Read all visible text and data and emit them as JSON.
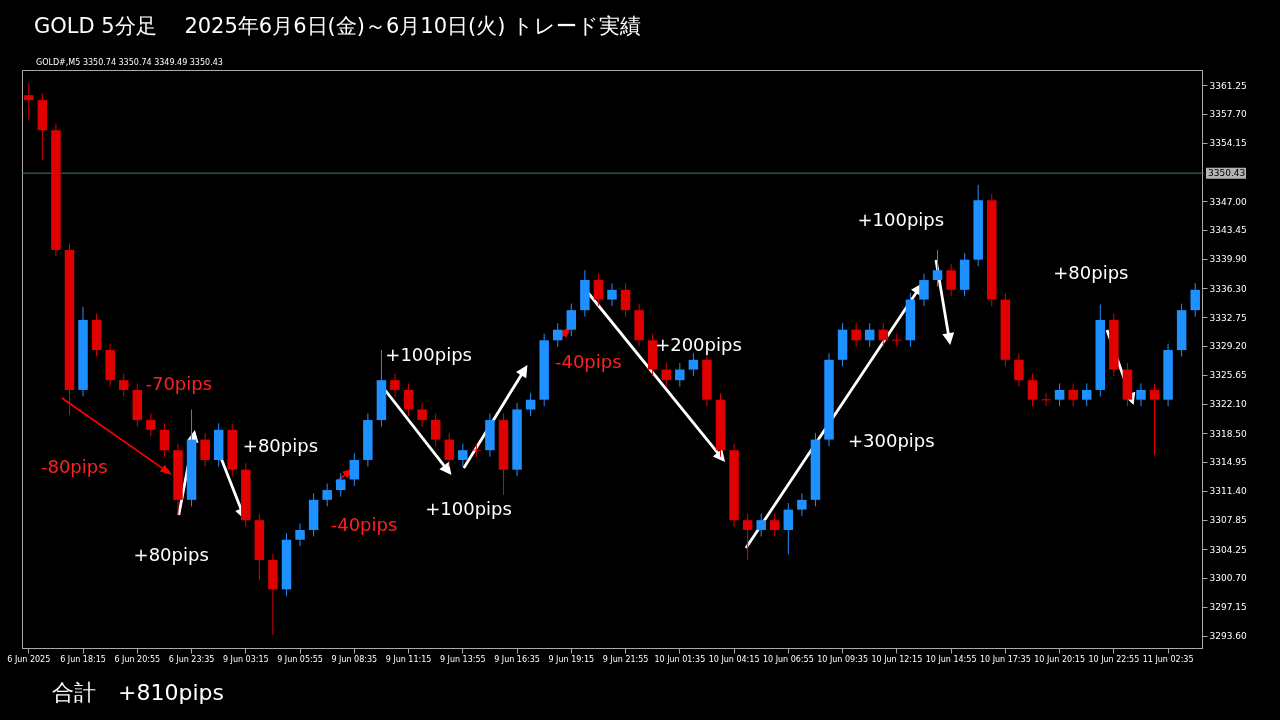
{
  "chart_data": {
    "type": "candlestick",
    "title": "GOLD  5分足　 2025年6月6日(金)～6月10日(火) トレード実績",
    "categories": [
      "6 Jun 2025",
      null,
      null,
      null,
      "6 Jun 18:15",
      null,
      null,
      null,
      "6 Jun 20:55",
      null,
      null,
      null,
      "6 Jun 23:35",
      null,
      null,
      null,
      "9 Jun 03:15",
      null,
      null,
      null,
      "9 Jun 05:55",
      null,
      null,
      null,
      "9 Jun 08:35",
      null,
      null,
      null,
      "9 Jun 11:15",
      null,
      null,
      null,
      "9 Jun 13:55",
      null,
      null,
      null,
      "9 Jun 16:35",
      null,
      null,
      null,
      "9 Jun 19:15",
      null,
      null,
      null,
      "9 Jun 21:55",
      null,
      null,
      null,
      "10 Jun 01:35",
      null,
      null,
      null,
      "10 Jun 04:15",
      null,
      null,
      null,
      "10 Jun 06:55",
      null,
      null,
      null,
      "10 Jun 09:35",
      null,
      null,
      null,
      "10 Jun 12:15",
      null,
      null,
      null,
      "10 Jun 14:55",
      null,
      null,
      null,
      "10 Jun 17:35",
      null,
      null,
      null,
      "10 Jun 20:15",
      null,
      null,
      null,
      "10 Jun 22:55",
      null,
      null,
      null,
      "11 Jun 02:35",
      null,
      null
    ],
    "ohlc": [
      [
        3360.0,
        3361.5,
        3357.0,
        3359.4
      ],
      [
        3359.4,
        3360.2,
        3352.0,
        3355.7
      ],
      [
        3355.7,
        3356.5,
        3340.2,
        3341.0
      ],
      [
        3341.0,
        3341.8,
        3320.7,
        3323.8
      ],
      [
        3323.8,
        3334.0,
        3323.0,
        3332.4
      ],
      [
        3332.4,
        3333.2,
        3327.9,
        3328.7
      ],
      [
        3328.7,
        3329.5,
        3324.2,
        3325.0
      ],
      [
        3325.0,
        3325.8,
        3323.0,
        3323.8
      ],
      [
        3323.8,
        3324.6,
        3319.3,
        3320.1
      ],
      [
        3320.1,
        3320.9,
        3318.1,
        3318.9
      ],
      [
        3318.9,
        3319.7,
        3315.6,
        3316.4
      ],
      [
        3316.4,
        3317.2,
        3308.5,
        3310.3
      ],
      [
        3310.3,
        3321.4,
        3309.5,
        3317.7
      ],
      [
        3317.7,
        3318.5,
        3314.4,
        3315.2
      ],
      [
        3315.2,
        3319.7,
        3314.4,
        3318.9
      ],
      [
        3318.9,
        3319.7,
        3313.2,
        3314.0
      ],
      [
        3314.0,
        3314.8,
        3307.0,
        3307.8
      ],
      [
        3307.8,
        3308.6,
        3300.5,
        3302.9
      ],
      [
        3302.9,
        3303.7,
        3293.7,
        3299.3
      ],
      [
        3299.3,
        3306.2,
        3298.5,
        3305.4
      ],
      [
        3305.4,
        3307.4,
        3304.6,
        3306.6
      ],
      [
        3306.6,
        3311.1,
        3305.8,
        3310.3
      ],
      [
        3310.3,
        3312.3,
        3309.5,
        3311.5
      ],
      [
        3311.5,
        3313.6,
        3310.7,
        3312.8
      ],
      [
        3312.8,
        3316.0,
        3312.0,
        3315.2
      ],
      [
        3315.2,
        3320.9,
        3314.4,
        3320.1
      ],
      [
        3320.1,
        3328.7,
        3319.3,
        3325.0
      ],
      [
        3325.0,
        3325.8,
        3323.0,
        3323.8
      ],
      [
        3323.8,
        3324.6,
        3320.6,
        3321.4
      ],
      [
        3321.4,
        3322.2,
        3319.3,
        3320.1
      ],
      [
        3320.1,
        3320.9,
        3316.9,
        3317.7
      ],
      [
        3317.7,
        3318.5,
        3314.4,
        3315.2
      ],
      [
        3315.2,
        3317.2,
        3314.4,
        3316.4
      ],
      [
        3316.4,
        3317.2,
        3315.6,
        3316.4
      ],
      [
        3316.4,
        3320.9,
        3315.6,
        3320.1
      ],
      [
        3320.1,
        3320.9,
        3310.9,
        3314.0
      ],
      [
        3314.0,
        3322.2,
        3313.2,
        3321.4
      ],
      [
        3321.4,
        3323.4,
        3320.6,
        3322.6
      ],
      [
        3322.6,
        3330.7,
        3321.8,
        3329.9
      ],
      [
        3329.9,
        3332.0,
        3329.1,
        3331.2
      ],
      [
        3331.2,
        3334.4,
        3330.4,
        3333.6
      ],
      [
        3333.6,
        3338.5,
        3332.8,
        3337.3
      ],
      [
        3337.3,
        3338.1,
        3334.1,
        3334.9
      ],
      [
        3334.9,
        3336.9,
        3334.1,
        3336.1
      ],
      [
        3336.1,
        3336.9,
        3332.8,
        3333.6
      ],
      [
        3333.6,
        3334.4,
        3329.1,
        3329.9
      ],
      [
        3329.9,
        3330.7,
        3325.5,
        3326.3
      ],
      [
        3326.3,
        3327.1,
        3324.2,
        3325.0
      ],
      [
        3325.0,
        3327.1,
        3324.2,
        3326.3
      ],
      [
        3326.3,
        3328.3,
        3325.5,
        3327.5
      ],
      [
        3327.5,
        3328.3,
        3321.8,
        3322.6
      ],
      [
        3322.6,
        3323.4,
        3315.6,
        3316.4
      ],
      [
        3316.4,
        3317.2,
        3307.0,
        3307.8
      ],
      [
        3307.8,
        3308.6,
        3302.9,
        3306.6
      ],
      [
        3306.6,
        3308.6,
        3305.8,
        3307.8
      ],
      [
        3307.8,
        3308.6,
        3305.8,
        3306.6
      ],
      [
        3306.6,
        3309.9,
        3303.6,
        3309.1
      ],
      [
        3309.1,
        3311.1,
        3308.3,
        3310.3
      ],
      [
        3310.3,
        3318.5,
        3309.5,
        3317.7
      ],
      [
        3317.7,
        3328.3,
        3316.9,
        3327.5
      ],
      [
        3327.5,
        3332.0,
        3326.7,
        3331.2
      ],
      [
        3331.2,
        3332.0,
        3329.1,
        3329.9
      ],
      [
        3329.9,
        3332.0,
        3329.1,
        3331.2
      ],
      [
        3331.2,
        3332.0,
        3329.1,
        3329.9
      ],
      [
        3329.9,
        3330.7,
        3329.1,
        3329.9
      ],
      [
        3329.9,
        3335.7,
        3329.1,
        3334.9
      ],
      [
        3334.9,
        3338.1,
        3334.1,
        3337.3
      ],
      [
        3337.3,
        3341.0,
        3336.5,
        3338.5
      ],
      [
        3338.5,
        3339.3,
        3335.3,
        3336.1
      ],
      [
        3336.1,
        3340.6,
        3335.3,
        3339.8
      ],
      [
        3339.8,
        3349.0,
        3339.0,
        3347.1
      ],
      [
        3347.1,
        3347.9,
        3334.1,
        3334.9
      ],
      [
        3334.9,
        3335.7,
        3326.7,
        3327.5
      ],
      [
        3327.5,
        3328.3,
        3324.2,
        3325.0
      ],
      [
        3325.0,
        3325.8,
        3321.8,
        3322.6
      ],
      [
        3322.6,
        3323.4,
        3321.8,
        3322.6
      ],
      [
        3322.6,
        3324.6,
        3321.8,
        3323.8
      ],
      [
        3323.8,
        3324.6,
        3321.8,
        3322.6
      ],
      [
        3322.6,
        3324.6,
        3321.8,
        3323.8
      ],
      [
        3323.8,
        3334.3,
        3323.0,
        3332.4
      ],
      [
        3332.4,
        3333.2,
        3325.5,
        3326.3
      ],
      [
        3326.3,
        3327.1,
        3321.8,
        3322.6
      ],
      [
        3322.6,
        3324.6,
        3321.8,
        3323.8
      ],
      [
        3323.8,
        3324.6,
        3315.8,
        3322.6
      ],
      [
        3322.6,
        3329.5,
        3321.8,
        3328.7
      ],
      [
        3328.7,
        3334.4,
        3327.9,
        3333.6
      ],
      [
        3333.6,
        3336.9,
        3332.8,
        3336.1
      ]
    ],
    "colors": [
      "#e00000",
      "#e00000",
      "#e00000",
      "#e00000",
      "#1e90ff",
      "#e00000",
      "#e00000",
      "#e00000",
      "#e00000",
      "#e00000",
      "#e00000",
      "#e00000",
      "#1e90ff",
      "#e00000",
      "#1e90ff",
      "#e00000",
      "#e00000",
      "#e00000",
      "#e00000",
      "#1e90ff",
      "#1e90ff",
      "#1e90ff",
      "#1e90ff",
      "#1e90ff",
      "#1e90ff",
      "#1e90ff",
      "#1e90ff",
      "#e00000",
      "#e00000",
      "#e00000",
      "#e00000",
      "#e00000",
      "#1e90ff",
      "#e00000",
      "#1e90ff",
      "#e00000",
      "#1e90ff",
      "#1e90ff",
      "#1e90ff",
      "#1e90ff",
      "#1e90ff",
      "#1e90ff",
      "#e00000",
      "#1e90ff",
      "#e00000",
      "#e00000",
      "#e00000",
      "#e00000",
      "#1e90ff",
      "#1e90ff",
      "#e00000",
      "#e00000",
      "#e00000",
      "#e00000",
      "#1e90ff",
      "#e00000",
      "#1e90ff",
      "#1e90ff",
      "#1e90ff",
      "#1e90ff",
      "#1e90ff",
      "#e00000",
      "#1e90ff",
      "#e00000",
      "#e00000",
      "#1e90ff",
      "#1e90ff",
      "#1e90ff",
      "#e00000",
      "#1e90ff",
      "#1e90ff",
      "#e00000",
      "#e00000",
      "#e00000",
      "#e00000",
      "#e00000",
      "#1e90ff",
      "#e00000",
      "#1e90ff",
      "#1e90ff",
      "#e00000",
      "#e00000",
      "#1e90ff",
      "#e00000",
      "#1e90ff",
      "#1e90ff",
      "#1e90ff"
    ],
    "ylim": [
      3292.1,
      3363.1
    ],
    "yticks": [
      {
        "value": 3361.25,
        "label": "3361.25"
      },
      {
        "value": 3357.7,
        "label": "3357.70"
      },
      {
        "value": 3354.15,
        "label": "3354.15"
      },
      {
        "value": 3347.0,
        "label": "3347.00"
      },
      {
        "value": 3343.45,
        "label": "3343.45"
      },
      {
        "value": 3339.9,
        "label": "3339.90"
      },
      {
        "value": 3336.3,
        "label": "3336.30"
      },
      {
        "value": 3332.75,
        "label": "3332.75"
      },
      {
        "value": 3329.2,
        "label": "3329.20"
      },
      {
        "value": 3325.65,
        "label": "3325.65"
      },
      {
        "value": 3322.1,
        "label": "3322.10"
      },
      {
        "value": 3318.5,
        "label": "3318.50"
      },
      {
        "value": 3314.95,
        "label": "3314.95"
      },
      {
        "value": 3311.4,
        "label": "3311.40"
      },
      {
        "value": 3307.85,
        "label": "3307.85"
      },
      {
        "value": 3304.25,
        "label": "3304.25"
      },
      {
        "value": 3300.7,
        "label": "3300.70"
      },
      {
        "value": 3297.15,
        "label": "3297.15"
      },
      {
        "value": 3293.6,
        "label": "3293.60"
      }
    ],
    "ref_lines": [
      {
        "axis": "y",
        "value": 3350.43,
        "label": "3350.43",
        "color": "#3a7a78"
      }
    ],
    "annotations": [
      "GOLD#,M5  3350.74 3350.74 3349.49 3350.43",
      "合計　+810pips",
      "-80pips",
      "-70pips",
      "+80pips",
      "+80pips",
      "-40pips",
      "+100pips",
      "+100pips",
      "-40pips",
      "+200pips",
      "+300pips",
      "+100pips",
      "+80pips"
    ]
  }
}
